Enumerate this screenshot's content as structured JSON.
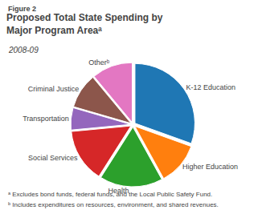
{
  "chart_data": {
    "type": "pie",
    "title": "Proposed Total State Spending by\nMajor Program Areaᵃ",
    "subtitle": "2008-09",
    "categories": [
      "K-12 Education",
      "Higher Education",
      "Health",
      "Social Services",
      "Transportation",
      "Criminal Justice",
      "Otherᵇ"
    ],
    "values": [
      30.5,
      11.5,
      17.0,
      14.5,
      6.0,
      9.5,
      11.0
    ],
    "annotations": [
      "Figure 2",
      "ᵃ Excludes bond funds, federal funds, and the Local Public Safety Fund.",
      "ᵇ Includes expenditures on resources, environment, and shared revenues."
    ]
  }
}
